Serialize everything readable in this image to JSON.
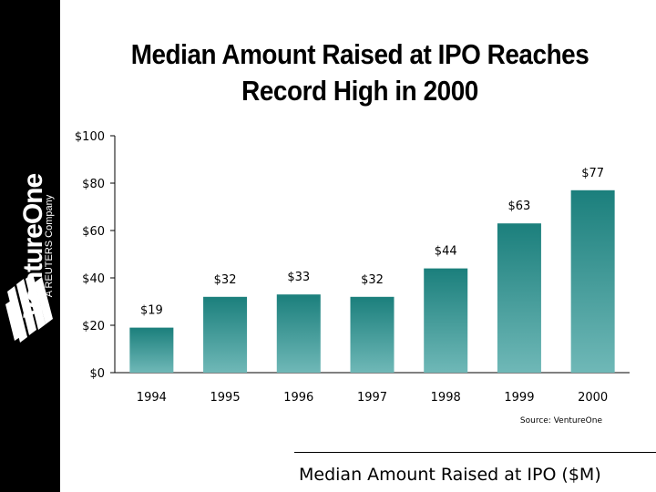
{
  "sidebar": {
    "brand_name": "VentureOne",
    "brand_sub": "A REUTERS Company"
  },
  "chart_data": {
    "type": "bar",
    "title": "Median Amount Raised at IPO Reaches Record High in 2000",
    "title_lines": [
      "Median Amount Raised at IPO Reaches",
      "Record High in 2000"
    ],
    "categories": [
      "1994",
      "1995",
      "1996",
      "1997",
      "1998",
      "1999",
      "2000"
    ],
    "values": [
      19,
      32,
      33,
      32,
      44,
      63,
      77
    ],
    "value_labels": [
      "$19",
      "$32",
      "$33",
      "$32",
      "$44",
      "$63",
      "$77"
    ],
    "y_ticks": [
      0,
      20,
      40,
      60,
      80,
      100
    ],
    "y_tick_labels": [
      "$0",
      "$20",
      "$40",
      "$60",
      "$80",
      "$100"
    ],
    "ylim": [
      0,
      100
    ],
    "xlabel": "",
    "ylabel": "",
    "grid": false,
    "source": "Source: VentureOne",
    "caption": "Median Amount Raised at IPO ($M)",
    "colors": {
      "bar_top": "#1b7f7c",
      "bar_bottom": "#6fb8b7",
      "axis": "#000000"
    }
  }
}
